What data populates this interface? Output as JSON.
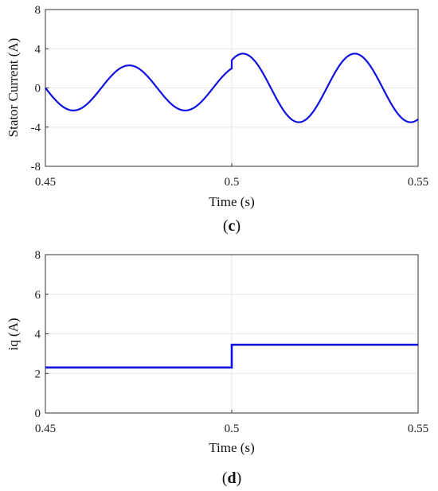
{
  "colors": {
    "series": "#1010e0",
    "grid": "#e6e6e6",
    "axis": "#333333"
  },
  "chart_data": [
    {
      "type": "line",
      "caption": "(c)",
      "caption_letter": "c",
      "xlabel": "Time (s)",
      "ylabel": "Stator Current (A)",
      "xlim": [
        0.45,
        0.55
      ],
      "ylim": [
        -8,
        8
      ],
      "xticks": [
        "0.45",
        "0.5",
        "0.55"
      ],
      "yticks": [
        "8",
        "4",
        "0",
        "-4",
        "-8"
      ],
      "grid": true,
      "series": [
        {
          "segments": [
            {
              "x_start": 0.45,
              "x_end": 0.5,
              "amplitude": 2.3,
              "period": 0.03,
              "zero_cross": 0.45,
              "direction": "falling"
            },
            {
              "x_start": 0.5,
              "x_end": 0.55,
              "amplitude": 3.5,
              "period": 0.03,
              "phase_offset_at_step": 0.0,
              "note_values": [
                2.8,
                3.5,
                -3.5,
                3.5,
                -3.2
              ]
            }
          ],
          "x": [
            0.45,
            0.4575,
            0.465,
            0.4725,
            0.48,
            0.4875,
            0.495,
            0.5,
            0.5025,
            0.51,
            0.5175,
            0.525,
            0.5325,
            0.54,
            0.5475,
            0.55
          ],
          "y": [
            0.0,
            -2.3,
            -0.2,
            2.3,
            0.1,
            -2.3,
            0.0,
            1.9,
            3.5,
            0.8,
            -3.5,
            -0.5,
            3.5,
            0.3,
            -3.5,
            -3.2
          ]
        }
      ]
    },
    {
      "type": "line",
      "caption": "(d)",
      "caption_letter": "d",
      "xlabel": "Time (s)",
      "ylabel": "iq (A)",
      "xlim": [
        0.45,
        0.55
      ],
      "ylim": [
        0,
        8
      ],
      "xticks": [
        "0.45",
        "0.5",
        "0.55"
      ],
      "yticks": [
        "8",
        "6",
        "4",
        "2",
        "0"
      ],
      "grid": true,
      "series": [
        {
          "x": [
            0.45,
            0.5,
            0.5,
            0.55
          ],
          "y": [
            2.3,
            2.3,
            3.45,
            3.45
          ]
        }
      ]
    }
  ]
}
